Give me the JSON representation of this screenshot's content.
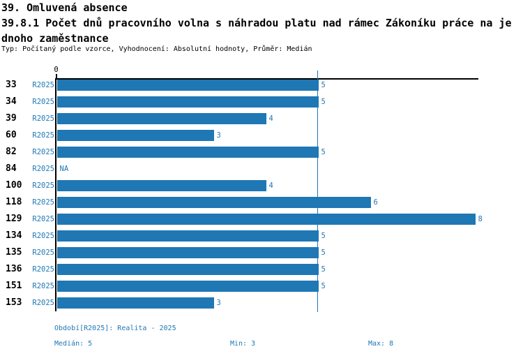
{
  "header": {
    "section_title": "39. Omluvená absence",
    "metric_title_line1": "39.8.1 Počet dnů pracovního volna s náhradou platu nad rámec Zákoníku práce na je",
    "metric_title_line2": "dnoho zaměstnance",
    "subtitle": "Typ: Počítaný podle vzorce, Vyhodnocení: Absolutní hodnoty, Průměr: Medián"
  },
  "chart_data": {
    "type": "bar",
    "orientation": "horizontal",
    "title": "39.8.1 Počet dnů pracovního volna s náhradou platu nad rámec Zákoníku práce na jednoho zaměstnance",
    "categories": [
      "33",
      "34",
      "39",
      "60",
      "82",
      "84",
      "100",
      "118",
      "129",
      "134",
      "135",
      "136",
      "151",
      "153"
    ],
    "series": [
      {
        "name": "R2025",
        "values": [
          5,
          5,
          4,
          3,
          5,
          null,
          4,
          6,
          8,
          5,
          5,
          5,
          5,
          3
        ]
      }
    ],
    "value_labels": [
      "5",
      "5",
      "4",
      "3",
      "5",
      "NA",
      "4",
      "6",
      "8",
      "5",
      "5",
      "5",
      "5",
      "3"
    ],
    "xlim": [
      0,
      8.1
    ],
    "x_tick_labels": [
      "0"
    ],
    "reference_line_value": 5,
    "grid": false,
    "legend_position": "none",
    "bar_color": "#1f77b4",
    "accent_text_color": "#1f77b4"
  },
  "footer": {
    "period_label": "Období[R2025]: Realita - 2025",
    "median_label": "Medián: 5",
    "min_label": "Min: 3",
    "max_label": "Max: 8"
  }
}
